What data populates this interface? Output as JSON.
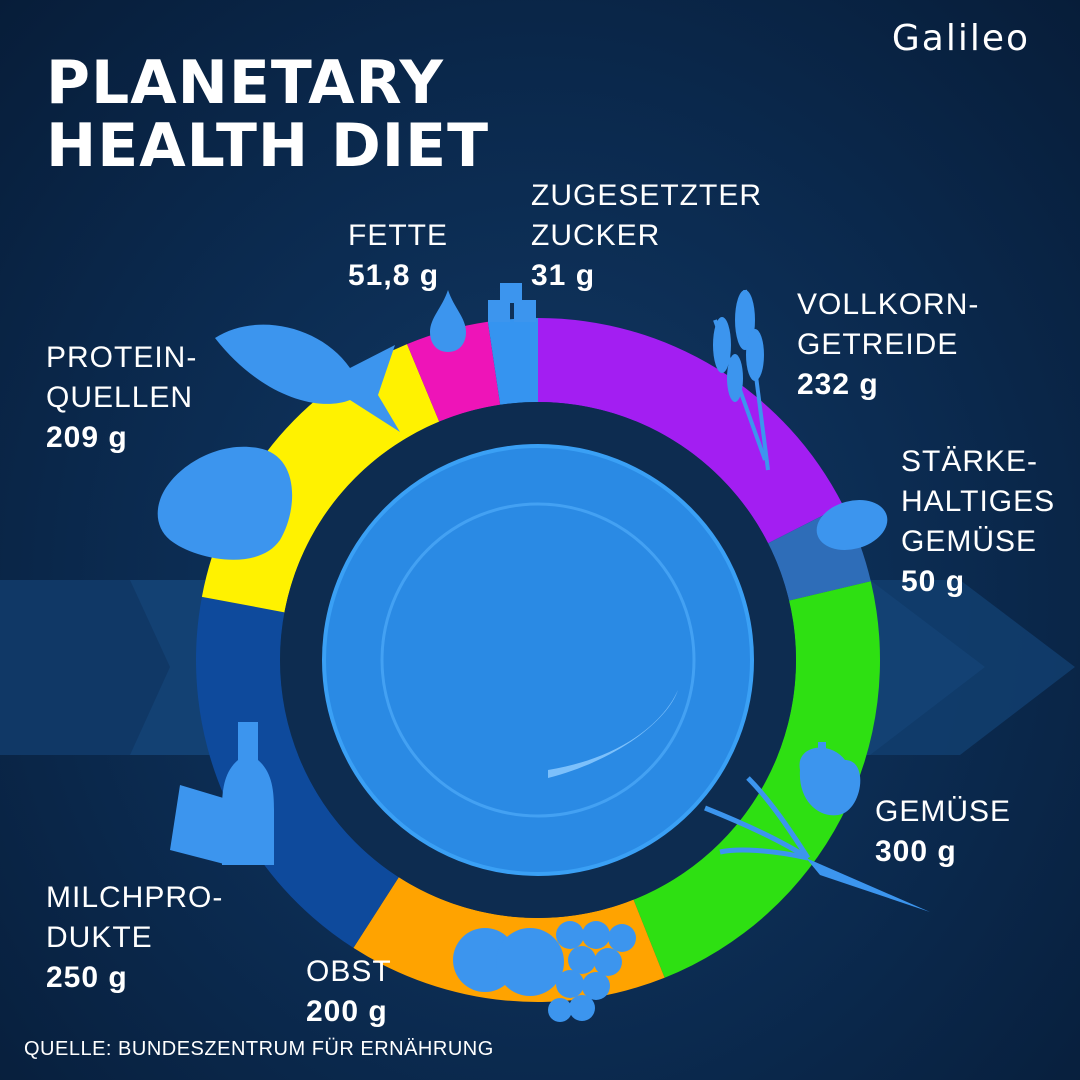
{
  "header": {
    "title_line1": "PLANETARY",
    "title_line2": "HEALTH DIET",
    "logo": "Galileo"
  },
  "footer": {
    "source": "QUELLE: BUNDESZENTRUM FÜR ERNÄHRUNG"
  },
  "colors": {
    "background": "#0b2a4f",
    "plate": "#2a8ae4",
    "ring_inner": "#0d2c50",
    "icons": "#3c95ee"
  },
  "chart_data": {
    "type": "pie",
    "title": "PLANETARY HEALTH DIET",
    "unit": "g",
    "slices": [
      {
        "id": "vollkorn",
        "name_lines": [
          "VOLLKORN-",
          "GETREIDE"
        ],
        "value_label": "232 g",
        "value": 232,
        "color": "#a31ef2",
        "icon": "wheat-icon"
      },
      {
        "id": "staerke",
        "name_lines": [
          "STÄRKE-",
          "HALTIGES",
          "GEMÜSE"
        ],
        "value_label": "50 g",
        "value": 50,
        "color": "#2e6db8",
        "icon": "potato-icon"
      },
      {
        "id": "gemuese",
        "name_lines": [
          "GEMÜSE"
        ],
        "value_label": "300 g",
        "value": 300,
        "color": "#2ee012",
        "icon": "carrot-icon"
      },
      {
        "id": "obst",
        "name_lines": [
          "OBST"
        ],
        "value_label": "200 g",
        "value": 200,
        "color": "#ffa300",
        "icon": "fruit-icon"
      },
      {
        "id": "milch",
        "name_lines": [
          "MILCHPRO-",
          "DUKTE"
        ],
        "value_label": "250 g",
        "value": 250,
        "color": "#0e4a9c",
        "icon": "dairy-icon"
      },
      {
        "id": "protein",
        "name_lines": [
          "PROTEIN-",
          "QUELLEN"
        ],
        "value_label": "209 g",
        "value": 209,
        "color": "#fff200",
        "icon": "fish-icon"
      },
      {
        "id": "fette",
        "name_lines": [
          "FETTE"
        ],
        "value_label": "51,8 g",
        "value": 51.8,
        "color": "#ee14b8",
        "icon": "drop-icon"
      },
      {
        "id": "zucker",
        "name_lines": [
          "ZUGESETZTER",
          "ZUCKER"
        ],
        "value_label": "31 g",
        "value": 31,
        "color": "#3594f0",
        "icon": "sugar-cube-icon"
      }
    ]
  }
}
